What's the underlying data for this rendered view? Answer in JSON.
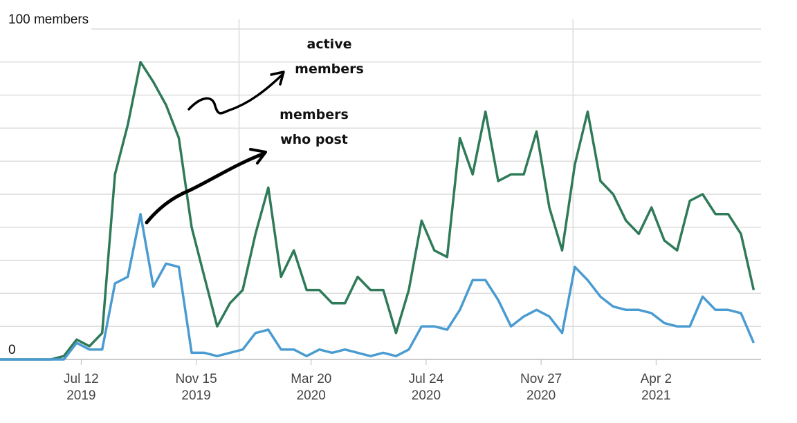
{
  "chart_data": {
    "type": "line",
    "x": [
      "2019-04-14",
      "2019-04-28",
      "2019-05-12",
      "2019-05-26",
      "2019-06-09",
      "2019-06-23",
      "2019-07-07",
      "2019-07-21",
      "2019-08-04",
      "2019-08-18",
      "2019-09-01",
      "2019-09-15",
      "2019-09-29",
      "2019-10-13",
      "2019-10-27",
      "2019-11-10",
      "2019-11-24",
      "2019-12-08",
      "2019-12-22",
      "2020-01-05",
      "2020-01-19",
      "2020-02-02",
      "2020-02-16",
      "2020-03-01",
      "2020-03-15",
      "2020-03-29",
      "2020-04-12",
      "2020-04-26",
      "2020-05-10",
      "2020-05-24",
      "2020-06-07",
      "2020-06-21",
      "2020-07-05",
      "2020-07-19",
      "2020-08-02",
      "2020-08-16",
      "2020-08-30",
      "2020-09-13",
      "2020-09-27",
      "2020-10-11",
      "2020-10-25",
      "2020-11-08",
      "2020-11-22",
      "2020-12-06",
      "2020-12-20",
      "2021-01-03",
      "2021-01-17",
      "2021-01-31",
      "2021-02-14",
      "2021-02-28",
      "2021-03-14",
      "2021-03-28",
      "2021-04-11",
      "2021-04-25",
      "2021-05-09",
      "2021-05-23",
      "2021-06-06",
      "2021-06-20",
      "2021-07-04",
      "2021-07-18"
    ],
    "series": [
      {
        "name": "active members",
        "color": "#2f7a58",
        "values": [
          0,
          0,
          0,
          0,
          0,
          1,
          6,
          4,
          8,
          56,
          71,
          90,
          84,
          77,
          67,
          40,
          25,
          10,
          17,
          21,
          38,
          52,
          25,
          33,
          21,
          21,
          17,
          17,
          25,
          21,
          21,
          8,
          21,
          42,
          33,
          31,
          67,
          56,
          75,
          54,
          56,
          56,
          69,
          46,
          33,
          59,
          75,
          54,
          50,
          42,
          38,
          46,
          36,
          33,
          48,
          50,
          44,
          44,
          38,
          21
        ]
      },
      {
        "name": "members who post",
        "color": "#4a9bd1",
        "values": [
          0,
          0,
          0,
          0,
          0,
          0,
          5,
          3,
          3,
          23,
          25,
          44,
          22,
          29,
          28,
          2,
          2,
          1,
          2,
          3,
          8,
          9,
          3,
          3,
          1,
          3,
          2,
          3,
          2,
          1,
          2,
          1,
          3,
          10,
          10,
          9,
          15,
          24,
          24,
          18,
          10,
          13,
          15,
          13,
          8,
          28,
          24,
          19,
          16,
          15,
          15,
          14,
          11,
          10,
          10,
          19,
          15,
          15,
          14,
          5
        ]
      }
    ],
    "xlim": [
      "2019-04-14",
      "2021-07-26"
    ],
    "xticks": [
      {
        "value": "2019-07-12",
        "label": [
          "Jul 12",
          "2019"
        ]
      },
      {
        "value": "2019-11-15",
        "label": [
          "Nov 15",
          "2019"
        ]
      },
      {
        "value": "2020-03-20",
        "label": [
          "Mar 20",
          "2020"
        ]
      },
      {
        "value": "2020-07-24",
        "label": [
          "Jul 24",
          "2020"
        ]
      },
      {
        "value": "2020-11-27",
        "label": [
          "Nov 27",
          "2020"
        ]
      },
      {
        "value": "2021-04-02",
        "label": [
          "Apr 2",
          "2021"
        ]
      }
    ],
    "xgrid": [
      "2020-01-01",
      "2021-01-01"
    ],
    "ylim": [
      0,
      100
    ],
    "yticks": [
      0,
      {
        "value": 100,
        "label": "100 members"
      }
    ],
    "ygrid": [
      10,
      20,
      30,
      40,
      50,
      60,
      70,
      80,
      90
    ],
    "annotations": [
      {
        "lines": [
          "active",
          "members"
        ],
        "series": 0
      },
      {
        "lines": [
          "members",
          "who post"
        ],
        "series": 1
      }
    ]
  }
}
